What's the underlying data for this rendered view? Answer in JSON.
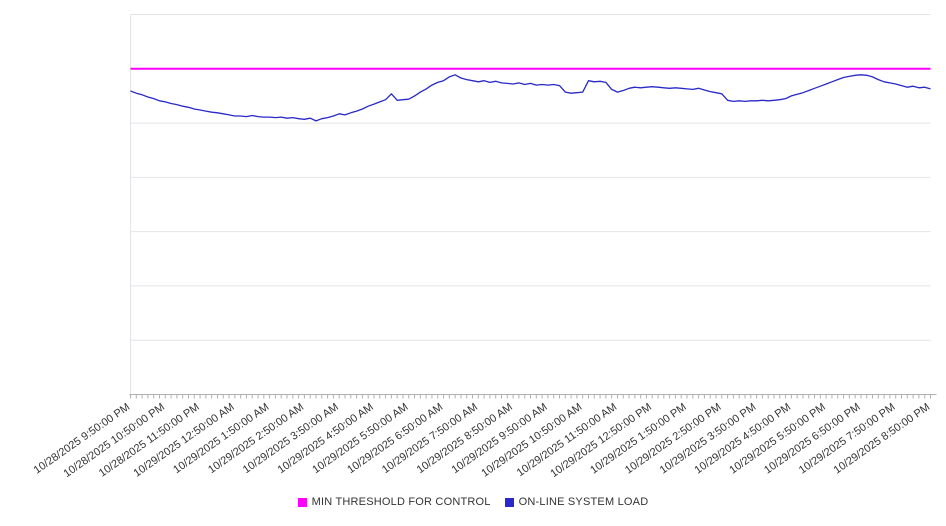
{
  "chart_data": {
    "type": "line",
    "title": "",
    "xlabel": "",
    "ylabel": "",
    "ylim": [
      0,
      70
    ],
    "grid_step": 10,
    "grid": true,
    "legend_position": "bottom",
    "points_per_label": 6,
    "x_tick_interval_minutes": 10,
    "grid_color": "#e4e4e9",
    "axis_color": "#b0b0b0",
    "label_color": "#333333",
    "x_labels": [
      "10/28/2025 9:50:00 PM",
      "10/28/2025 10:50:00 PM",
      "10/28/2025 11:50:00 PM",
      "10/29/2025 12:50:00 AM",
      "10/29/2025 1:50:00 AM",
      "10/29/2025 2:50:00 AM",
      "10/29/2025 3:50:00 AM",
      "10/29/2025 4:50:00 AM",
      "10/29/2025 5:50:00 AM",
      "10/29/2025 6:50:00 AM",
      "10/29/2025 7:50:00 AM",
      "10/29/2025 8:50:00 AM",
      "10/29/2025 9:50:00 AM",
      "10/29/2025 10:50:00 AM",
      "10/29/2025 11:50:00 AM",
      "10/29/2025 12:50:00 PM",
      "10/29/2025 1:50:00 PM",
      "10/29/2025 2:50:00 PM",
      "10/29/2025 3:50:00 PM",
      "10/29/2025 4:50:00 PM",
      "10/29/2025 5:50:00 PM",
      "10/29/2025 6:50:00 PM",
      "10/29/2025 7:50:00 PM",
      "10/29/2025 8:50:00 PM"
    ],
    "series": [
      {
        "name": "MIN THRESHOLD FOR CONTROL",
        "color": "#ff00ff",
        "style": "threshold",
        "value": 60
      },
      {
        "name": "ON-LINE SYSTEM LOAD",
        "color": "#2929c8",
        "style": "line",
        "values": [
          55.9,
          55.5,
          55.2,
          54.8,
          54.5,
          54.1,
          53.9,
          53.6,
          53.4,
          53.1,
          52.9,
          52.6,
          52.4,
          52.2,
          52.0,
          51.9,
          51.7,
          51.5,
          51.3,
          51.3,
          51.2,
          51.4,
          51.2,
          51.1,
          51.1,
          51.0,
          51.1,
          50.9,
          51.0,
          50.8,
          50.7,
          50.9,
          50.4,
          50.8,
          51.0,
          51.3,
          51.7,
          51.5,
          51.9,
          52.2,
          52.6,
          53.1,
          53.5,
          53.9,
          54.3,
          55.4,
          54.2,
          54.3,
          54.4,
          55.0,
          55.7,
          56.3,
          57.0,
          57.5,
          57.8,
          58.5,
          58.9,
          58.3,
          58.0,
          57.8,
          57.6,
          57.8,
          57.5,
          57.7,
          57.4,
          57.3,
          57.2,
          57.4,
          57.1,
          57.3,
          57.0,
          57.1,
          57.0,
          57.1,
          56.9,
          55.7,
          55.5,
          55.6,
          55.7,
          57.8,
          57.6,
          57.7,
          57.5,
          56.2,
          55.7,
          56.0,
          56.4,
          56.6,
          56.5,
          56.6,
          56.7,
          56.6,
          56.5,
          56.4,
          56.5,
          56.4,
          56.3,
          56.2,
          56.4,
          56.1,
          55.8,
          55.6,
          55.4,
          54.2,
          54.0,
          54.1,
          54.0,
          54.1,
          54.1,
          54.2,
          54.1,
          54.2,
          54.3,
          54.5,
          55.0,
          55.3,
          55.6,
          56.0,
          56.4,
          56.8,
          57.2,
          57.6,
          58.0,
          58.4,
          58.6,
          58.8,
          58.9,
          58.8,
          58.5,
          58.0,
          57.6,
          57.4,
          57.2,
          56.9,
          56.6,
          56.8,
          56.5,
          56.6,
          56.3
        ]
      }
    ]
  }
}
